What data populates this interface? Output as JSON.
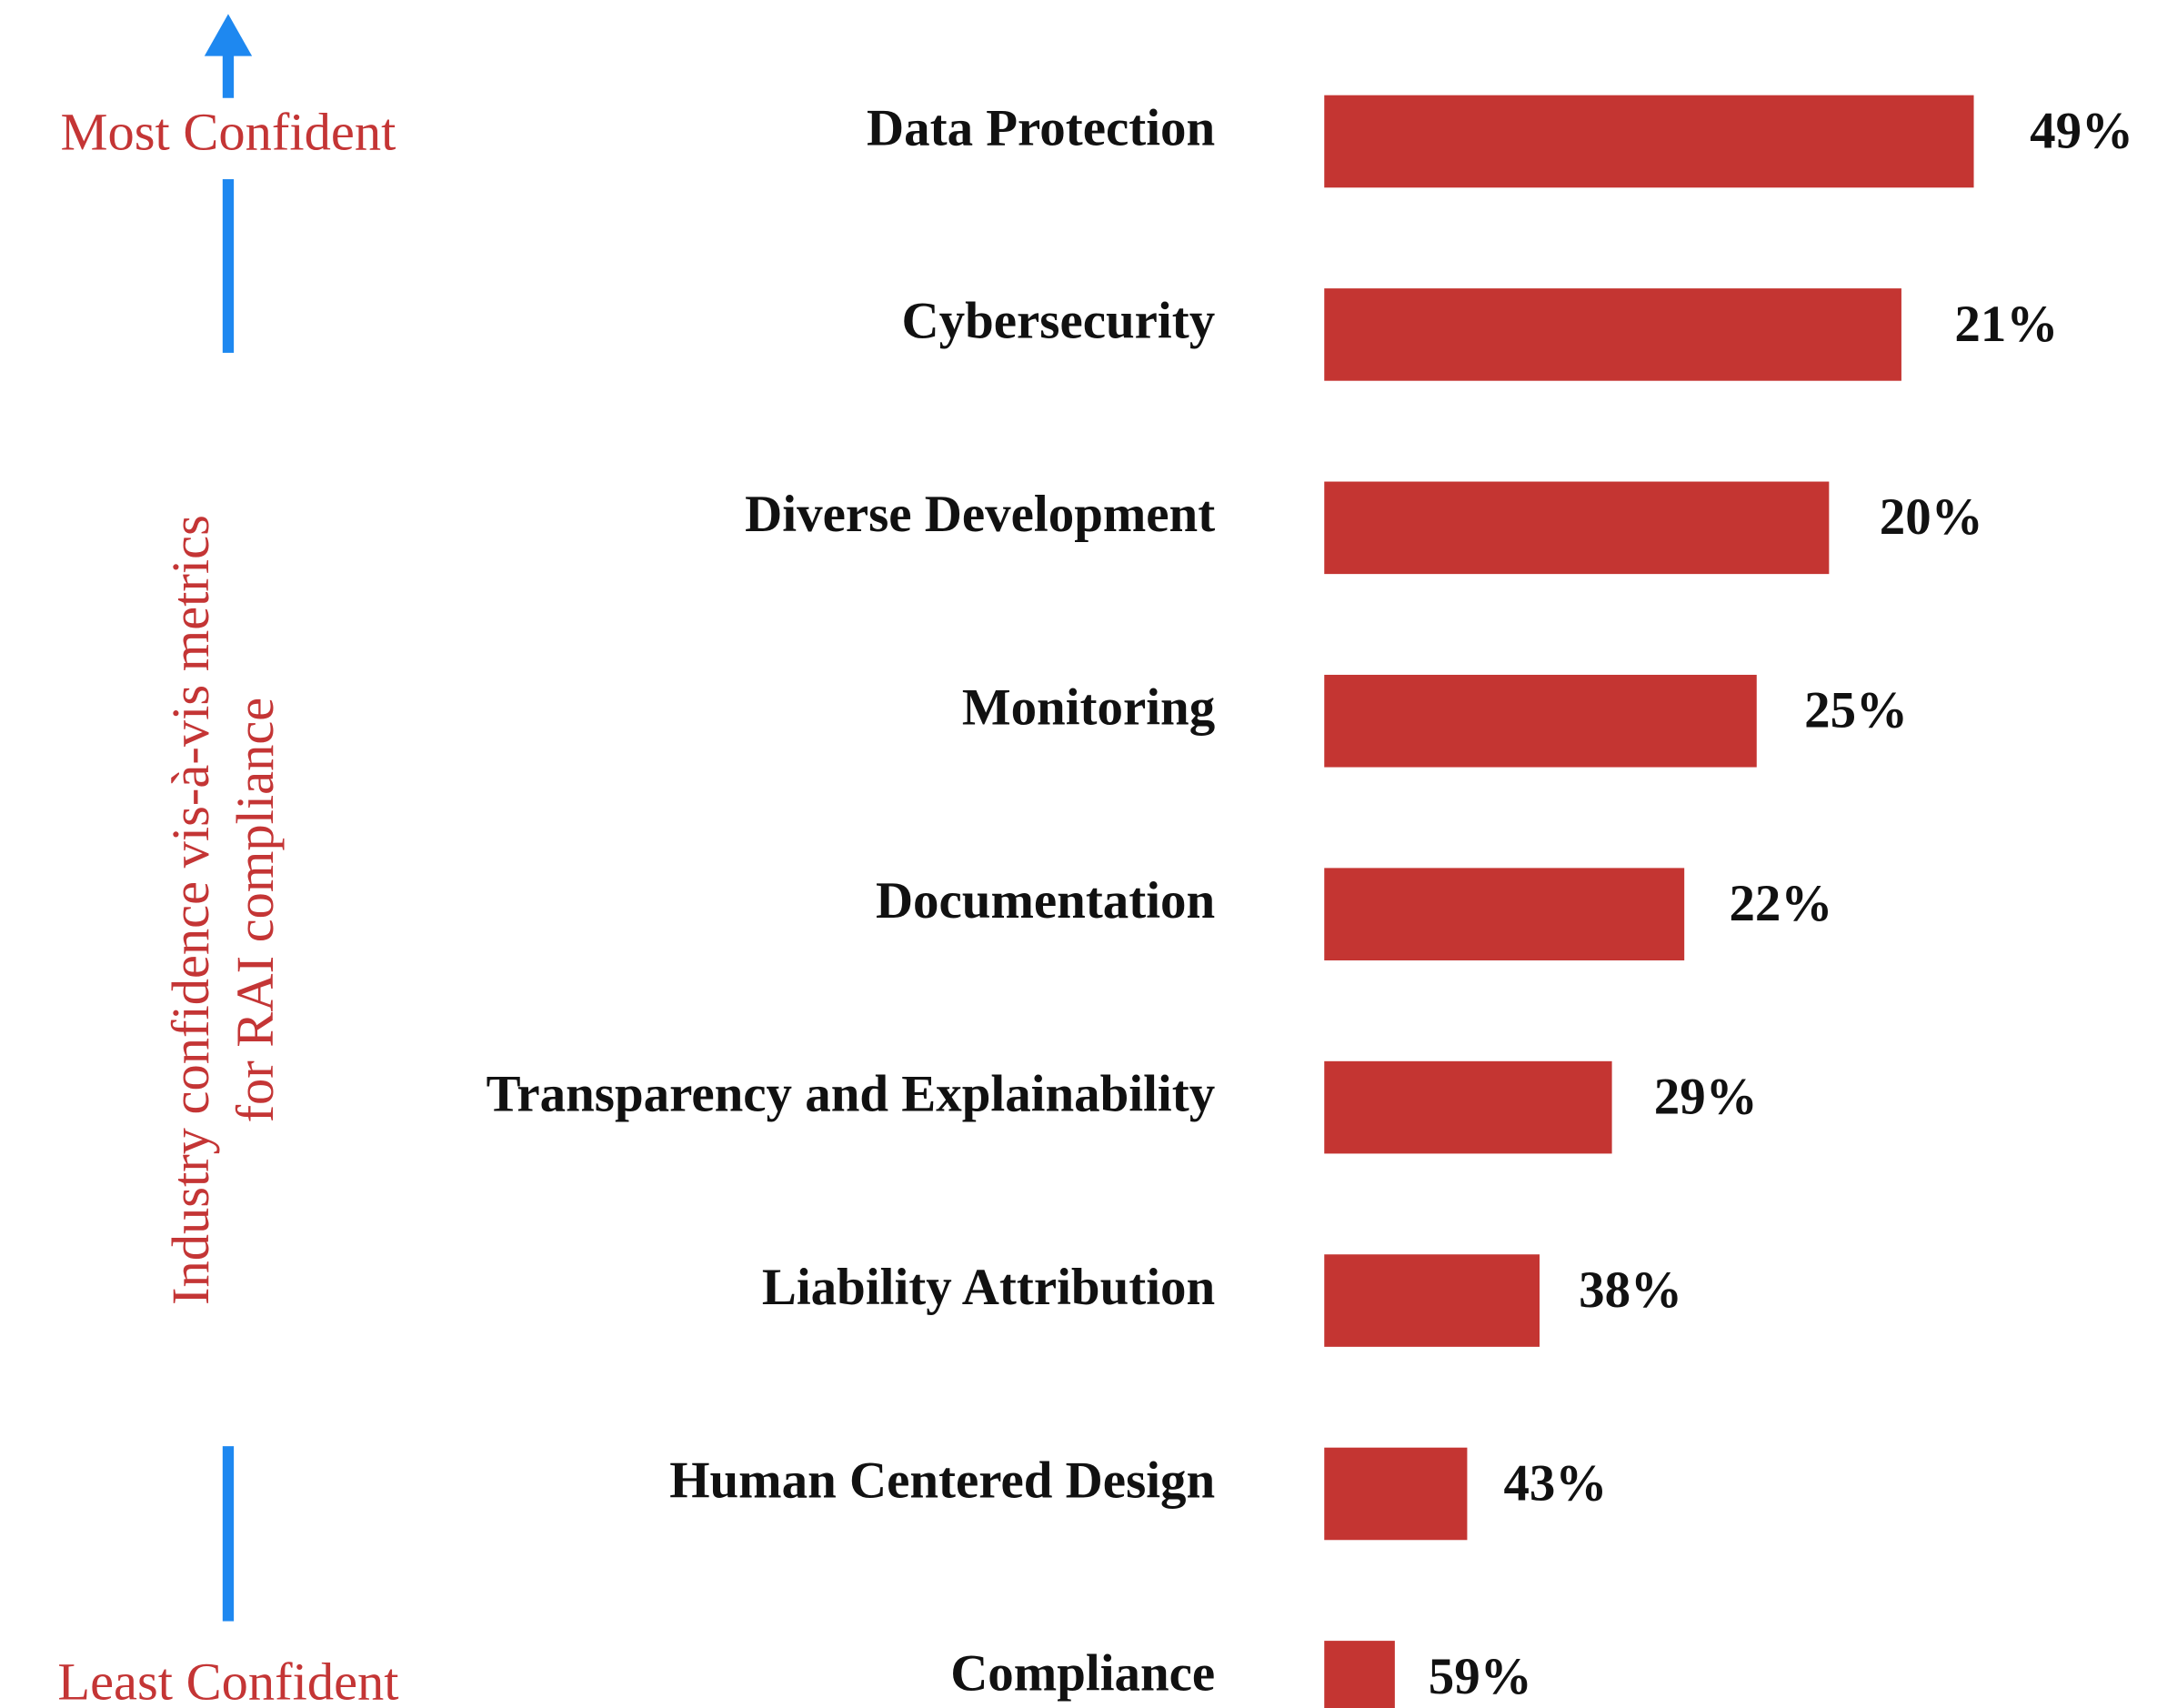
{
  "chart_data": {
    "type": "bar",
    "annotations": {
      "top": "Most Confident",
      "bottom": "Least Confident",
      "axis_lines": [
        "Industry confidence vis-à-vis metrics",
        "for RAI compliance"
      ]
    },
    "categories": [
      "Data Protection",
      "Cybersecurity",
      "Diverse Development",
      "Monitoring",
      "Documentation",
      "Transparency and Explainability",
      "Liability Attribution",
      "Human Centered Design",
      "Compliance"
    ],
    "value_labels": [
      "49%",
      "21%",
      "20%",
      "25%",
      "22%",
      "29%",
      "38%",
      "43%",
      "59%"
    ],
    "color": "#c43532",
    "arrow_color": "#1e88f0"
  }
}
